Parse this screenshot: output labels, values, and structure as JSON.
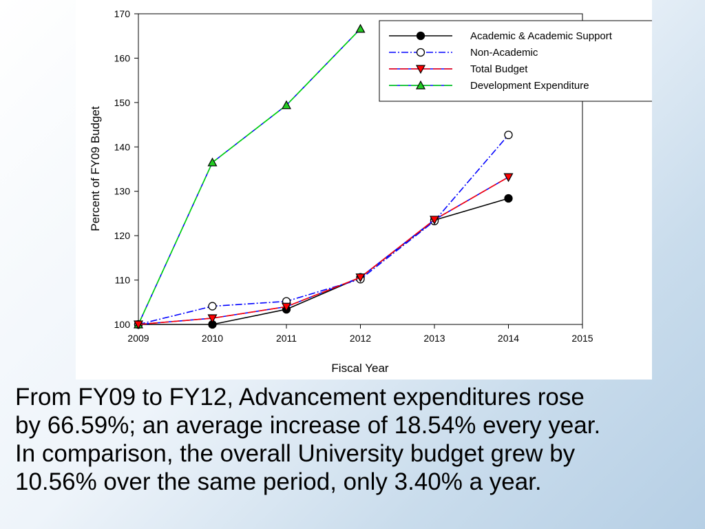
{
  "chart_data": {
    "type": "line",
    "xlabel": "Fiscal Year",
    "ylabel": "Percent of FY09 Budget",
    "xlim": [
      2009,
      2015
    ],
    "ylim": [
      100,
      170
    ],
    "x_ticks": [
      2009,
      2010,
      2011,
      2012,
      2013,
      2014,
      2015
    ],
    "y_ticks": [
      100,
      110,
      120,
      130,
      140,
      150,
      160,
      170
    ],
    "grid": false,
    "legend_position": "top-right",
    "series": [
      {
        "name": "Academic & Academic Support",
        "x": [
          2009,
          2010,
          2011,
          2012,
          2013,
          2014
        ],
        "values": [
          100,
          100,
          103.4,
          110.6,
          123.5,
          128.4
        ],
        "line_color": "#000000",
        "dash": "solid",
        "marker": "circle",
        "marker_fill": "#000000"
      },
      {
        "name": "Non-Academic",
        "x": [
          2009,
          2010,
          2011,
          2012,
          2013,
          2014
        ],
        "values": [
          100,
          104.1,
          105.2,
          110.2,
          123.3,
          142.7
        ],
        "line_color": "#0000ff",
        "dash": "dashdot",
        "marker": "circle",
        "marker_fill": "#ffffff"
      },
      {
        "name": "Total Budget",
        "x": [
          2009,
          2010,
          2011,
          2012,
          2013,
          2014
        ],
        "values": [
          100,
          101.4,
          104.0,
          110.6,
          123.6,
          133.2
        ],
        "line_color": "#ff0000",
        "dash": "dashed",
        "dash_color": "#0000ff",
        "marker": "triangle-down",
        "marker_fill": "#ff0000"
      },
      {
        "name": "Development Expenditure",
        "x": [
          2009,
          2010,
          2011,
          2012
        ],
        "values": [
          100,
          136.5,
          149.4,
          166.6
        ],
        "line_color": "#00dd00",
        "dash": "dashed",
        "dash_color": "#0000ff",
        "marker": "triangle-up",
        "marker_fill": "#22cc22"
      }
    ]
  },
  "caption": {
    "lines": [
      "From FY09 to FY12, Advancement expenditures rose",
      "by 66.59%; an average increase of 18.54% every year.",
      "In comparison, the overall University budget grew by",
      "10.56% over the same period, only 3.40% a year."
    ]
  }
}
